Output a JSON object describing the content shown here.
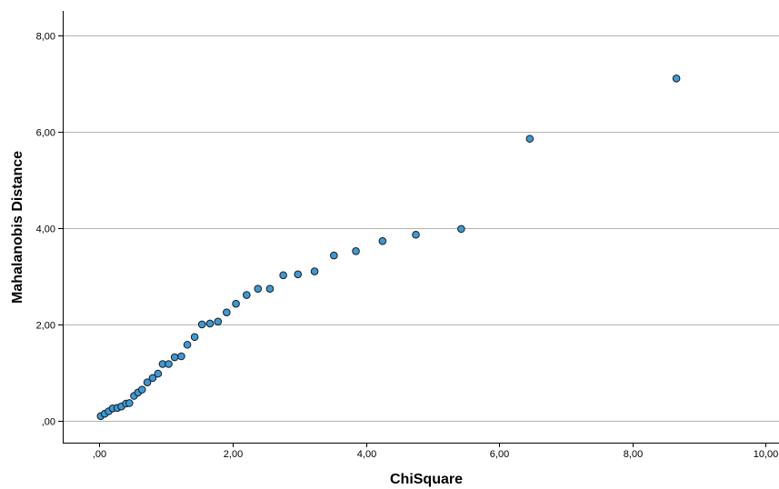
{
  "chart_data": {
    "type": "scatter",
    "xlabel": "ChiSquare",
    "ylabel": "Mahalanobis Distance",
    "xlim": [
      -0.55,
      10.2
    ],
    "ylim": [
      -0.45,
      8.5
    ],
    "x_ticks": [
      0,
      2,
      4,
      6,
      8,
      10
    ],
    "x_tick_labels": [
      ",00",
      "2,00",
      "4,00",
      "6,00",
      "8,00",
      "10,00"
    ],
    "y_ticks": [
      0,
      2,
      4,
      6,
      8
    ],
    "y_tick_labels": [
      ",00",
      "2,00",
      "4,00",
      "6,00",
      "8,00"
    ],
    "grid": "horizontal",
    "colors": {
      "marker_fill": "#3a9ad9",
      "marker_edge": "#1a1a1a",
      "gridline": "#b3b3b3",
      "axis": "#000000"
    },
    "points": [
      {
        "x": 0.02,
        "y": 0.1
      },
      {
        "x": 0.08,
        "y": 0.15
      },
      {
        "x": 0.14,
        "y": 0.2
      },
      {
        "x": 0.2,
        "y": 0.26
      },
      {
        "x": 0.27,
        "y": 0.27
      },
      {
        "x": 0.33,
        "y": 0.3
      },
      {
        "x": 0.4,
        "y": 0.36
      },
      {
        "x": 0.45,
        "y": 0.37
      },
      {
        "x": 0.52,
        "y": 0.52
      },
      {
        "x": 0.58,
        "y": 0.59
      },
      {
        "x": 0.64,
        "y": 0.65
      },
      {
        "x": 0.72,
        "y": 0.8
      },
      {
        "x": 0.8,
        "y": 0.89
      },
      {
        "x": 0.88,
        "y": 0.98
      },
      {
        "x": 0.95,
        "y": 1.18
      },
      {
        "x": 1.04,
        "y": 1.18
      },
      {
        "x": 1.13,
        "y": 1.32
      },
      {
        "x": 1.23,
        "y": 1.34
      },
      {
        "x": 1.32,
        "y": 1.58
      },
      {
        "x": 1.43,
        "y": 1.74
      },
      {
        "x": 1.54,
        "y": 2.0
      },
      {
        "x": 1.66,
        "y": 2.02
      },
      {
        "x": 1.78,
        "y": 2.06
      },
      {
        "x": 1.91,
        "y": 2.25
      },
      {
        "x": 2.05,
        "y": 2.43
      },
      {
        "x": 2.21,
        "y": 2.61
      },
      {
        "x": 2.38,
        "y": 2.74
      },
      {
        "x": 2.56,
        "y": 2.74
      },
      {
        "x": 2.76,
        "y": 3.02
      },
      {
        "x": 2.98,
        "y": 3.04
      },
      {
        "x": 3.23,
        "y": 3.1
      },
      {
        "x": 3.52,
        "y": 3.43
      },
      {
        "x": 3.85,
        "y": 3.52
      },
      {
        "x": 4.25,
        "y": 3.73
      },
      {
        "x": 4.75,
        "y": 3.86
      },
      {
        "x": 5.43,
        "y": 3.98
      },
      {
        "x": 6.46,
        "y": 5.85
      },
      {
        "x": 8.66,
        "y": 7.1
      }
    ]
  }
}
